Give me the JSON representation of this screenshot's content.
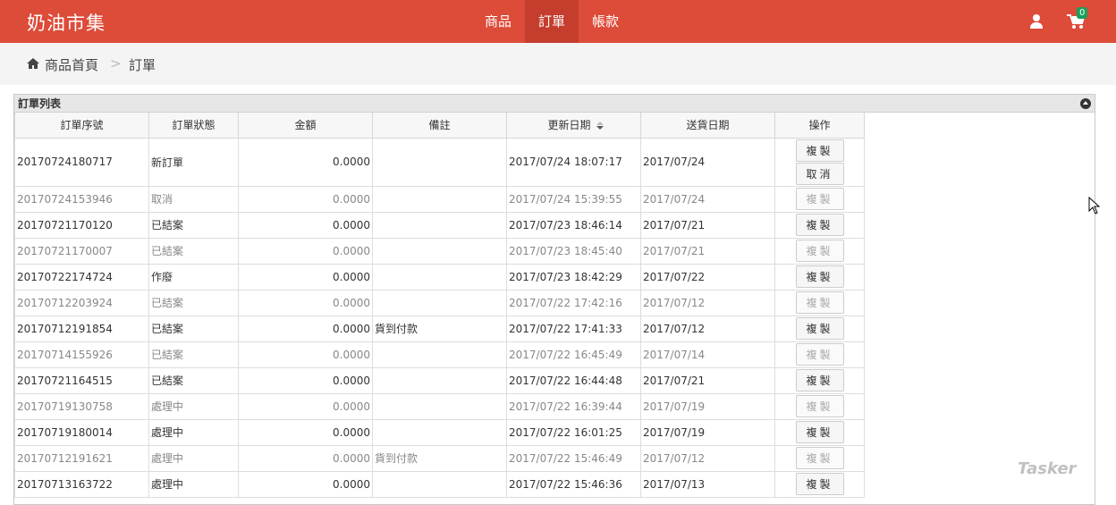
{
  "brand": "奶油市集",
  "nav": {
    "items": [
      {
        "label": "商品"
      },
      {
        "label": "訂單",
        "active": true
      },
      {
        "label": "帳款"
      }
    ],
    "cart_count": "0"
  },
  "colors": {
    "navbar": "#dd4b39",
    "active": "#c43d2d",
    "badge": "#16a05a"
  },
  "breadcrumb": {
    "home": "商品首頁",
    "separator": ">",
    "current": "訂單"
  },
  "panel": {
    "title": "訂單列表"
  },
  "table": {
    "headers": [
      "訂單序號",
      "訂單狀態",
      "金額",
      "備註",
      "更新日期",
      "送貨日期",
      "操作"
    ],
    "rows": [
      {
        "id": "20170724180717",
        "status": "新訂單",
        "amount": "0.0000",
        "note": "",
        "updated": "2017/07/24 18:07:17",
        "ship": "2017/07/24",
        "actions": [
          "複製",
          "取消"
        ],
        "dim": false
      },
      {
        "id": "20170724153946",
        "status": "取消",
        "amount": "0.0000",
        "note": "",
        "updated": "2017/07/24 15:39:55",
        "ship": "2017/07/24",
        "actions": [
          "複製"
        ],
        "dim": true
      },
      {
        "id": "20170721170120",
        "status": "已結案",
        "amount": "0.0000",
        "note": "",
        "updated": "2017/07/23 18:46:14",
        "ship": "2017/07/21",
        "actions": [
          "複製"
        ],
        "dim": false
      },
      {
        "id": "20170721170007",
        "status": "已結案",
        "amount": "0.0000",
        "note": "",
        "updated": "2017/07/23 18:45:40",
        "ship": "2017/07/21",
        "actions": [
          "複製"
        ],
        "dim": true
      },
      {
        "id": "20170722174724",
        "status": "作廢",
        "amount": "0.0000",
        "note": "",
        "updated": "2017/07/23 18:42:29",
        "ship": "2017/07/22",
        "actions": [
          "複製"
        ],
        "dim": false
      },
      {
        "id": "20170712203924",
        "status": "已結案",
        "amount": "0.0000",
        "note": "",
        "updated": "2017/07/22 17:42:16",
        "ship": "2017/07/12",
        "actions": [
          "複製"
        ],
        "dim": true
      },
      {
        "id": "20170712191854",
        "status": "已結案",
        "amount": "0.0000",
        "note": "貨到付款",
        "updated": "2017/07/22 17:41:33",
        "ship": "2017/07/12",
        "actions": [
          "複製"
        ],
        "dim": false
      },
      {
        "id": "20170714155926",
        "status": "已結案",
        "amount": "0.0000",
        "note": "",
        "updated": "2017/07/22 16:45:49",
        "ship": "2017/07/14",
        "actions": [
          "複製"
        ],
        "dim": true
      },
      {
        "id": "20170721164515",
        "status": "已結案",
        "amount": "0.0000",
        "note": "",
        "updated": "2017/07/22 16:44:48",
        "ship": "2017/07/21",
        "actions": [
          "複製"
        ],
        "dim": false
      },
      {
        "id": "20170719130758",
        "status": "處理中",
        "amount": "0.0000",
        "note": "",
        "updated": "2017/07/22 16:39:44",
        "ship": "2017/07/19",
        "actions": [
          "複製"
        ],
        "dim": true
      },
      {
        "id": "20170719180014",
        "status": "處理中",
        "amount": "0.0000",
        "note": "",
        "updated": "2017/07/22 16:01:25",
        "ship": "2017/07/19",
        "actions": [
          "複製"
        ],
        "dim": false
      },
      {
        "id": "20170712191621",
        "status": "處理中",
        "amount": "0.0000",
        "note": "貨到付款",
        "updated": "2017/07/22 15:46:49",
        "ship": "2017/07/12",
        "actions": [
          "複製"
        ],
        "dim": true
      },
      {
        "id": "20170713163722",
        "status": "處理中",
        "amount": "0.0000",
        "note": "",
        "updated": "2017/07/22 15:46:36",
        "ship": "2017/07/13",
        "actions": [
          "複製"
        ],
        "dim": false
      }
    ]
  },
  "watermark": "Tasker"
}
